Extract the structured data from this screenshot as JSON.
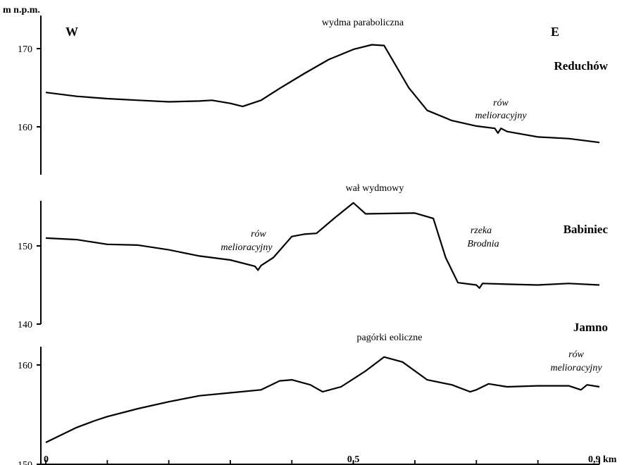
{
  "chart_data": [
    {
      "type": "line",
      "ylabel": "m n.p.m.",
      "title": "wydma paraboliczna",
      "direction_left": "W",
      "direction_right": "E",
      "location": "Reduchów",
      "ylim": [
        154,
        173
      ],
      "yticks": [
        160,
        170
      ],
      "annotations": [
        {
          "text": "rów\nmelioracyjny",
          "x": 0.72,
          "y": 162.5
        }
      ],
      "series": [
        {
          "name": "",
          "x": [
            0,
            0.05,
            0.1,
            0.15,
            0.2,
            0.25,
            0.27,
            0.3,
            0.32,
            0.35,
            0.38,
            0.42,
            0.46,
            0.5,
            0.53,
            0.55,
            0.57,
            0.59,
            0.62,
            0.66,
            0.7,
            0.73,
            0.735,
            0.74,
            0.75,
            0.8,
            0.85,
            0.9
          ],
          "y": [
            164.4,
            163.9,
            163.6,
            163.4,
            163.2,
            163.3,
            163.4,
            163.0,
            162.6,
            163.4,
            164.9,
            166.8,
            168.6,
            169.9,
            170.5,
            170.4,
            167.7,
            165.0,
            162.1,
            160.8,
            160.1,
            159.8,
            159.2,
            159.8,
            159.4,
            158.7,
            158.5,
            158.0
          ]
        }
      ]
    },
    {
      "type": "line",
      "title": "wał wydmowy",
      "location": "Babiniec",
      "ylim": [
        140,
        156
      ],
      "yticks": [
        140,
        150
      ],
      "annotations": [
        {
          "text": "rów\nmelioracyjny",
          "x": 0.35,
          "y": 150.7
        },
        {
          "text": "rzeka\nBrodnia",
          "x": 0.68,
          "y": 150.5
        }
      ],
      "series": [
        {
          "name": "",
          "x": [
            0,
            0.05,
            0.1,
            0.15,
            0.2,
            0.25,
            0.3,
            0.34,
            0.345,
            0.35,
            0.37,
            0.4,
            0.42,
            0.44,
            0.47,
            0.5,
            0.52,
            0.6,
            0.63,
            0.65,
            0.67,
            0.7,
            0.705,
            0.71,
            0.75,
            0.8,
            0.85,
            0.9
          ],
          "y": [
            151.0,
            150.8,
            150.2,
            150.1,
            149.5,
            148.7,
            148.2,
            147.4,
            146.9,
            147.5,
            148.5,
            151.2,
            151.5,
            151.6,
            153.6,
            155.5,
            154.1,
            154.2,
            153.5,
            148.5,
            145.3,
            145.0,
            144.6,
            145.2,
            145.1,
            145.0,
            145.2,
            145.0
          ]
        }
      ]
    },
    {
      "type": "line",
      "title": "pagórki eoliczne",
      "location": "Jamno",
      "xlabel": "0,9 km",
      "xticklabels": [
        "0",
        "0,5",
        "0,9 km"
      ],
      "xlim": [
        0,
        0.9
      ],
      "ylim": [
        150,
        162.5
      ],
      "yticks": [
        150,
        160
      ],
      "annotations": [
        {
          "text": "rów\nmelioracyjny",
          "x": 0.88,
          "y": 161.3
        }
      ],
      "series": [
        {
          "name": "",
          "x": [
            0,
            0.02,
            0.05,
            0.08,
            0.1,
            0.15,
            0.2,
            0.25,
            0.3,
            0.35,
            0.38,
            0.4,
            0.43,
            0.45,
            0.48,
            0.52,
            0.55,
            0.58,
            0.62,
            0.66,
            0.69,
            0.7,
            0.72,
            0.75,
            0.8,
            0.85,
            0.87,
            0.88,
            0.9
          ],
          "y": [
            152.2,
            152.8,
            153.7,
            154.4,
            154.8,
            155.6,
            156.3,
            156.9,
            157.2,
            157.5,
            158.4,
            158.5,
            158.0,
            157.3,
            157.8,
            159.4,
            160.8,
            160.3,
            158.5,
            158.0,
            157.3,
            157.5,
            158.1,
            157.8,
            157.9,
            157.9,
            157.5,
            158.0,
            157.8
          ]
        }
      ]
    }
  ]
}
